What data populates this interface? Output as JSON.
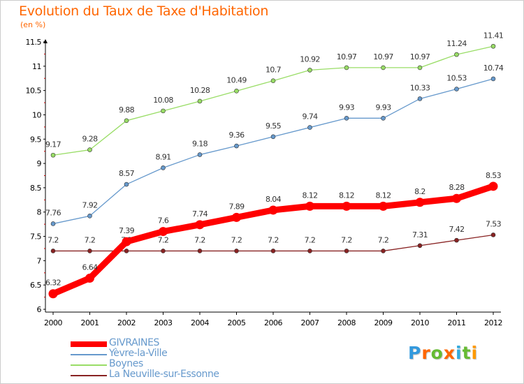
{
  "title": "Evolution du Taux de Taxe d'Habitation",
  "subtitle": "(en %)",
  "chart_data": {
    "type": "line",
    "x": [
      "2000",
      "2001",
      "2002",
      "2003",
      "2004",
      "2005",
      "2006",
      "2007",
      "2008",
      "2009",
      "2010",
      "2011",
      "2012"
    ],
    "ylim": [
      6,
      11.5
    ],
    "yticks": [
      "6",
      "6.5",
      "7",
      "7.5",
      "8",
      "8.5",
      "9",
      "9.5",
      "10",
      "10.5",
      "11",
      "11.5"
    ],
    "grid": false,
    "legend_position": "bottom-left",
    "series": [
      {
        "name": "GIVRAINES",
        "color": "#ff0000",
        "values": [
          6.32,
          6.64,
          7.39,
          7.6,
          7.74,
          7.89,
          8.04,
          8.12,
          8.12,
          8.12,
          8.2,
          8.28,
          8.53
        ],
        "labels": [
          "6.32",
          "6.64",
          "7.39",
          "7.6",
          "7.74",
          "7.89",
          "8.04",
          "8.12",
          "8.12",
          "8.12",
          "8.2",
          "8.28",
          "8.53"
        ]
      },
      {
        "name": "Yèvre-la-Ville",
        "color": "#6699cc",
        "values": [
          7.76,
          7.92,
          8.57,
          8.91,
          9.18,
          9.36,
          9.55,
          9.74,
          9.93,
          9.93,
          10.33,
          10.53,
          10.74
        ],
        "labels": [
          "7.76",
          "7.92",
          "8.57",
          "8.91",
          "9.18",
          "9.36",
          "9.55",
          "9.74",
          "9.93",
          "9.93",
          "10.33",
          "10.53",
          "10.74"
        ]
      },
      {
        "name": "Boynes",
        "color": "#99dd66",
        "values": [
          9.17,
          9.28,
          9.88,
          10.08,
          10.28,
          10.49,
          10.7,
          10.92,
          10.97,
          10.97,
          10.97,
          11.24,
          11.41
        ],
        "labels": [
          "9.17",
          "9.28",
          "9.88",
          "10.08",
          "10.28",
          "10.49",
          "10.7",
          "10.92",
          "10.97",
          "10.97",
          "10.97",
          "11.24",
          "11.41"
        ]
      },
      {
        "name": "La Neuville-sur-Essonne",
        "color": "#882222",
        "values": [
          7.2,
          7.2,
          7.2,
          7.2,
          7.2,
          7.2,
          7.2,
          7.2,
          7.2,
          7.2,
          7.31,
          7.42,
          7.53
        ],
        "labels": [
          "7.2",
          "7.2",
          "7.2",
          "7.2",
          "7.2",
          "7.2",
          "7.2",
          "7.2",
          "7.2",
          "7.2",
          "7.31",
          "7.42",
          "7.53"
        ]
      }
    ]
  },
  "logo": {
    "text": "Proxiti",
    "letter_colors": [
      "#3399dd",
      "#ff6600",
      "#66bb33",
      "#ff6600",
      "#33aadd",
      "#66bb33",
      "#ff9900"
    ]
  }
}
